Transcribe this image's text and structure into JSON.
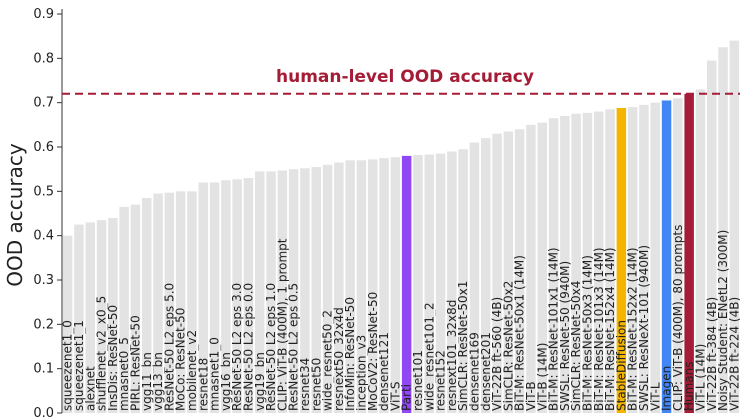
{
  "chart_data": {
    "type": "bar",
    "ylabel": "OOD accuracy",
    "categories": [
      "squeezenet1_0",
      "squeezenet1_1",
      "alexnet",
      "shufflenet_v2_x0_5",
      "InsDis: ResNet-50",
      "mnasnet0_5",
      "PIRL: ResNet-50",
      "vgg11_bn",
      "vgg13_bn",
      "ResNet-50 L2 eps 5.0",
      "MoCo: ResNet-50",
      "mobilenet_v2",
      "resnet18",
      "mnasnet1_0",
      "vgg16_bn",
      "ResNet-50 L2 eps 3.0",
      "ResNet-50 L2 eps 0.0",
      "vgg19_bn",
      "ResNet-50 L2 eps 1.0",
      "CLIP: ViT-B (400M), 1 prompt",
      "ResNet-50 L2 eps 0.5",
      "resnet34",
      "resnet50",
      "wide_resnet50_2",
      "resnext50_32x4d",
      "InfoMin: ResNet-50",
      "inception_v3",
      "MoCoV2: ResNet-50",
      "densenet121",
      "ViT-S",
      "Parti",
      "resnet101",
      "wide_resnet101_2",
      "resnet152",
      "resnext101_32x8d",
      "SimCLR: ResNet-50x1",
      "densenet169",
      "densenet201",
      "ViT-22B ft-560 (4B)",
      "SimCLR: ResNet-50x2",
      "BiT-M: ResNet-50x1 (14M)",
      "ViT-B",
      "ViT-B (14M)",
      "BiT-M: ResNet-101x1 (14M)",
      "SWSL: ResNet-50 (940M)",
      "SimCLR: ResNet-50x4",
      "BiT-M: ResNet-50x3 (14M)",
      "BiT-M: ResNet-101x3 (14M)",
      "BiT-M: ResNet-152x4 (14M)",
      "StableDiffusion",
      "BiT-M: ResNet-152x2 (14M)",
      "SWSL: ResNeXt-101 (940M)",
      "ViT-L",
      "Imagen",
      "CLIP: ViT-B (400M), 80 prompts",
      "Humans",
      "ViT-L (14M)",
      "ViT-22B ft-384 (4B)",
      "Noisy Student: ENetL2 (300M)",
      "ViT-22B ft-224 (4B)"
    ],
    "values": [
      0.4,
      0.425,
      0.43,
      0.435,
      0.44,
      0.465,
      0.47,
      0.485,
      0.495,
      0.497,
      0.5,
      0.5,
      0.52,
      0.52,
      0.525,
      0.527,
      0.53,
      0.545,
      0.545,
      0.547,
      0.55,
      0.552,
      0.555,
      0.56,
      0.565,
      0.57,
      0.57,
      0.572,
      0.575,
      0.577,
      0.58,
      0.582,
      0.583,
      0.585,
      0.59,
      0.595,
      0.61,
      0.62,
      0.63,
      0.635,
      0.64,
      0.65,
      0.655,
      0.665,
      0.67,
      0.675,
      0.677,
      0.68,
      0.685,
      0.688,
      0.69,
      0.695,
      0.7,
      0.705,
      0.71,
      0.72,
      0.73,
      0.795,
      0.825,
      0.84
    ],
    "colors": [
      "#e3e3e3",
      "#e3e3e3",
      "#e3e3e3",
      "#e3e3e3",
      "#e3e3e3",
      "#e3e3e3",
      "#e3e3e3",
      "#e3e3e3",
      "#e3e3e3",
      "#e3e3e3",
      "#e3e3e3",
      "#e3e3e3",
      "#e3e3e3",
      "#e3e3e3",
      "#e3e3e3",
      "#e3e3e3",
      "#e3e3e3",
      "#e3e3e3",
      "#e3e3e3",
      "#e3e3e3",
      "#e3e3e3",
      "#e3e3e3",
      "#e3e3e3",
      "#e3e3e3",
      "#e3e3e3",
      "#e3e3e3",
      "#e3e3e3",
      "#e3e3e3",
      "#e3e3e3",
      "#e3e3e3",
      "#9147f4",
      "#e3e3e3",
      "#e3e3e3",
      "#e3e3e3",
      "#e3e3e3",
      "#e3e3e3",
      "#e3e3e3",
      "#e3e3e3",
      "#e3e3e3",
      "#e3e3e3",
      "#e3e3e3",
      "#e3e3e3",
      "#e3e3e3",
      "#e3e3e3",
      "#e3e3e3",
      "#e3e3e3",
      "#e3e3e3",
      "#e3e3e3",
      "#e3e3e3",
      "#f4b400",
      "#e3e3e3",
      "#e3e3e3",
      "#e3e3e3",
      "#4285f4",
      "#e3e3e3",
      "#a51c36",
      "#e3e3e3",
      "#e3e3e3",
      "#e3e3e3",
      "#e3e3e3"
    ],
    "ylim": [
      0.0,
      0.9
    ],
    "yticks": [
      {
        "value": 0,
        "label": "0.0"
      },
      0.1,
      0.2,
      0.3,
      0.4,
      0.5,
      0.6,
      0.7,
      0.8,
      0.9
    ],
    "hline": {
      "value": 0.72,
      "label": "human-level OOD accuracy",
      "color": "#a51c36"
    }
  }
}
